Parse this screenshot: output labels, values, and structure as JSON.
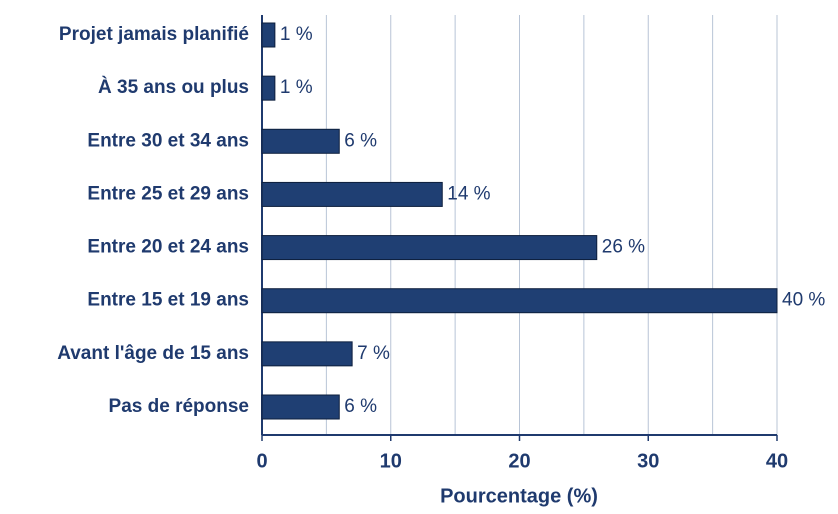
{
  "chart_data": {
    "type": "bar",
    "orientation": "horizontal",
    "categories": [
      "Projet jamais planifié",
      "À 35 ans ou plus",
      "Entre 30 et 34 ans",
      "Entre 25 et 29 ans",
      "Entre 20 et 24 ans",
      "Entre 15 et 19 ans",
      "Avant l'âge de 15 ans",
      "Pas de réponse"
    ],
    "values": [
      1,
      1,
      6,
      14,
      26,
      40,
      7,
      6
    ],
    "value_labels": [
      "1 %",
      "1 %",
      "6 %",
      "14 %",
      "26 %",
      "40 %",
      "7 %",
      "6 %"
    ],
    "color": "#1f3f73",
    "xlabel": "Pourcentage (%)",
    "xlim": [
      0,
      40
    ],
    "xticks": [
      0,
      10,
      20,
      30,
      40
    ],
    "xminorticks": [
      5,
      15,
      25,
      35
    ],
    "grid": true
  }
}
